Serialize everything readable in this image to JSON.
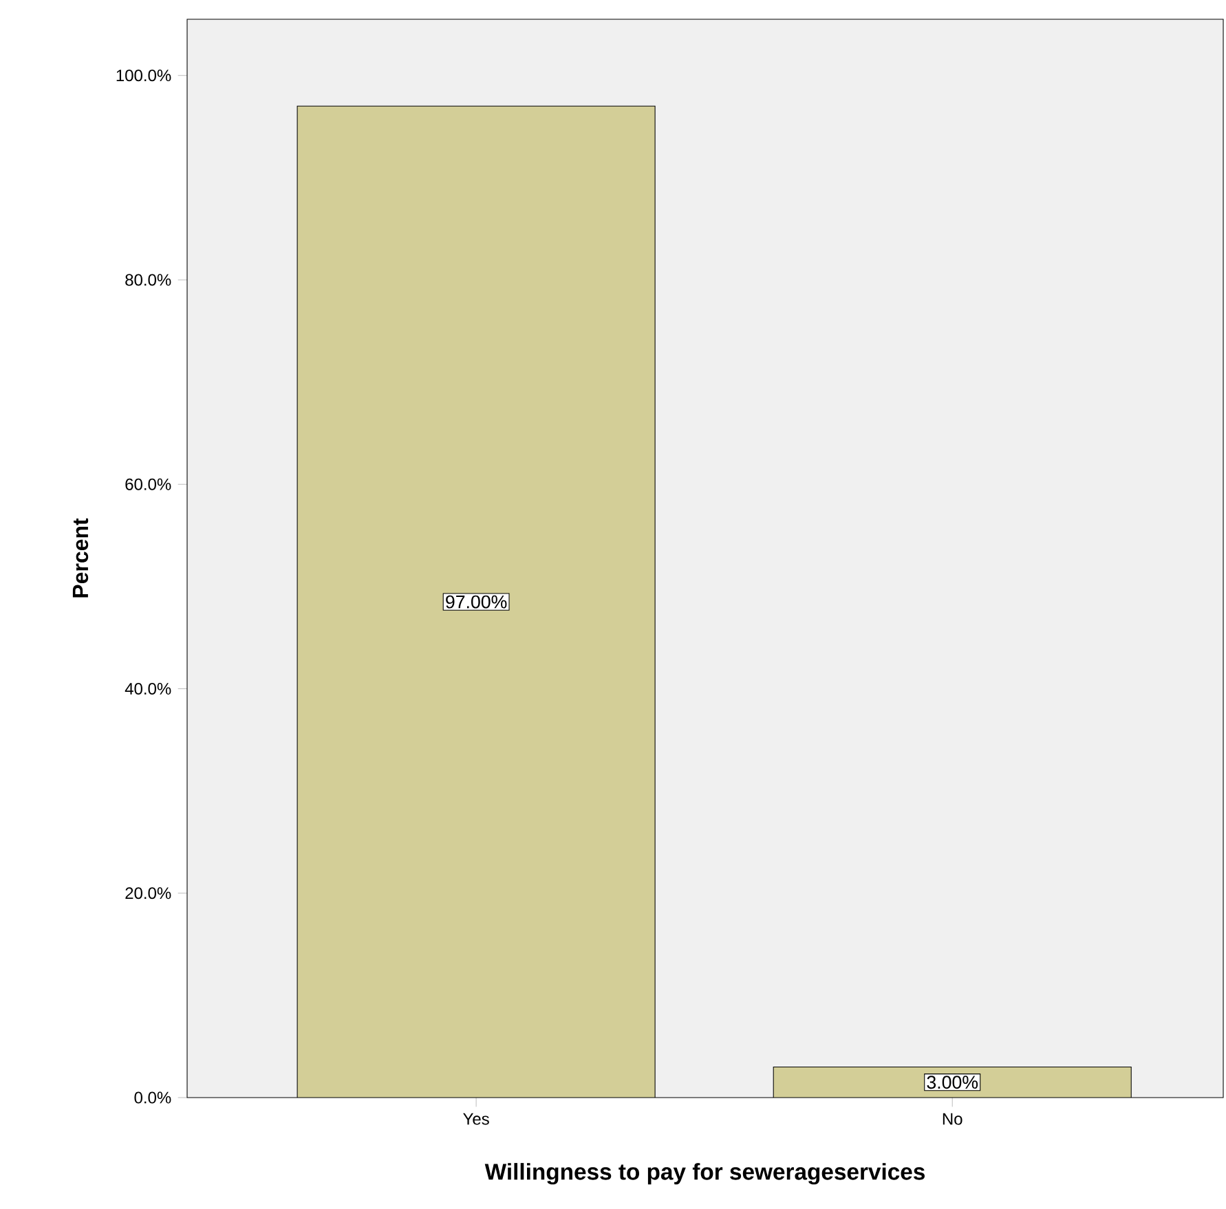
{
  "chart_data": {
    "type": "bar",
    "xlabel": "Willingness to pay for sewerageservices",
    "ylabel": "Percent",
    "categories": [
      "Yes",
      "No"
    ],
    "values": [
      97,
      3
    ],
    "color": "#d3ce97",
    "value_labels": [
      "97.00%",
      "3.00%"
    ],
    "ylim": [
      0,
      105.5
    ],
    "yticks": [
      {
        "value": 0,
        "label": "0.0%"
      },
      {
        "value": 20,
        "label": "20.0%"
      },
      {
        "value": 40,
        "label": "40.0%"
      },
      {
        "value": 60,
        "label": "60.0%"
      },
      {
        "value": 80,
        "label": "80.0%"
      },
      {
        "value": 100,
        "label": "100.0%"
      }
    ],
    "grid": false
  }
}
